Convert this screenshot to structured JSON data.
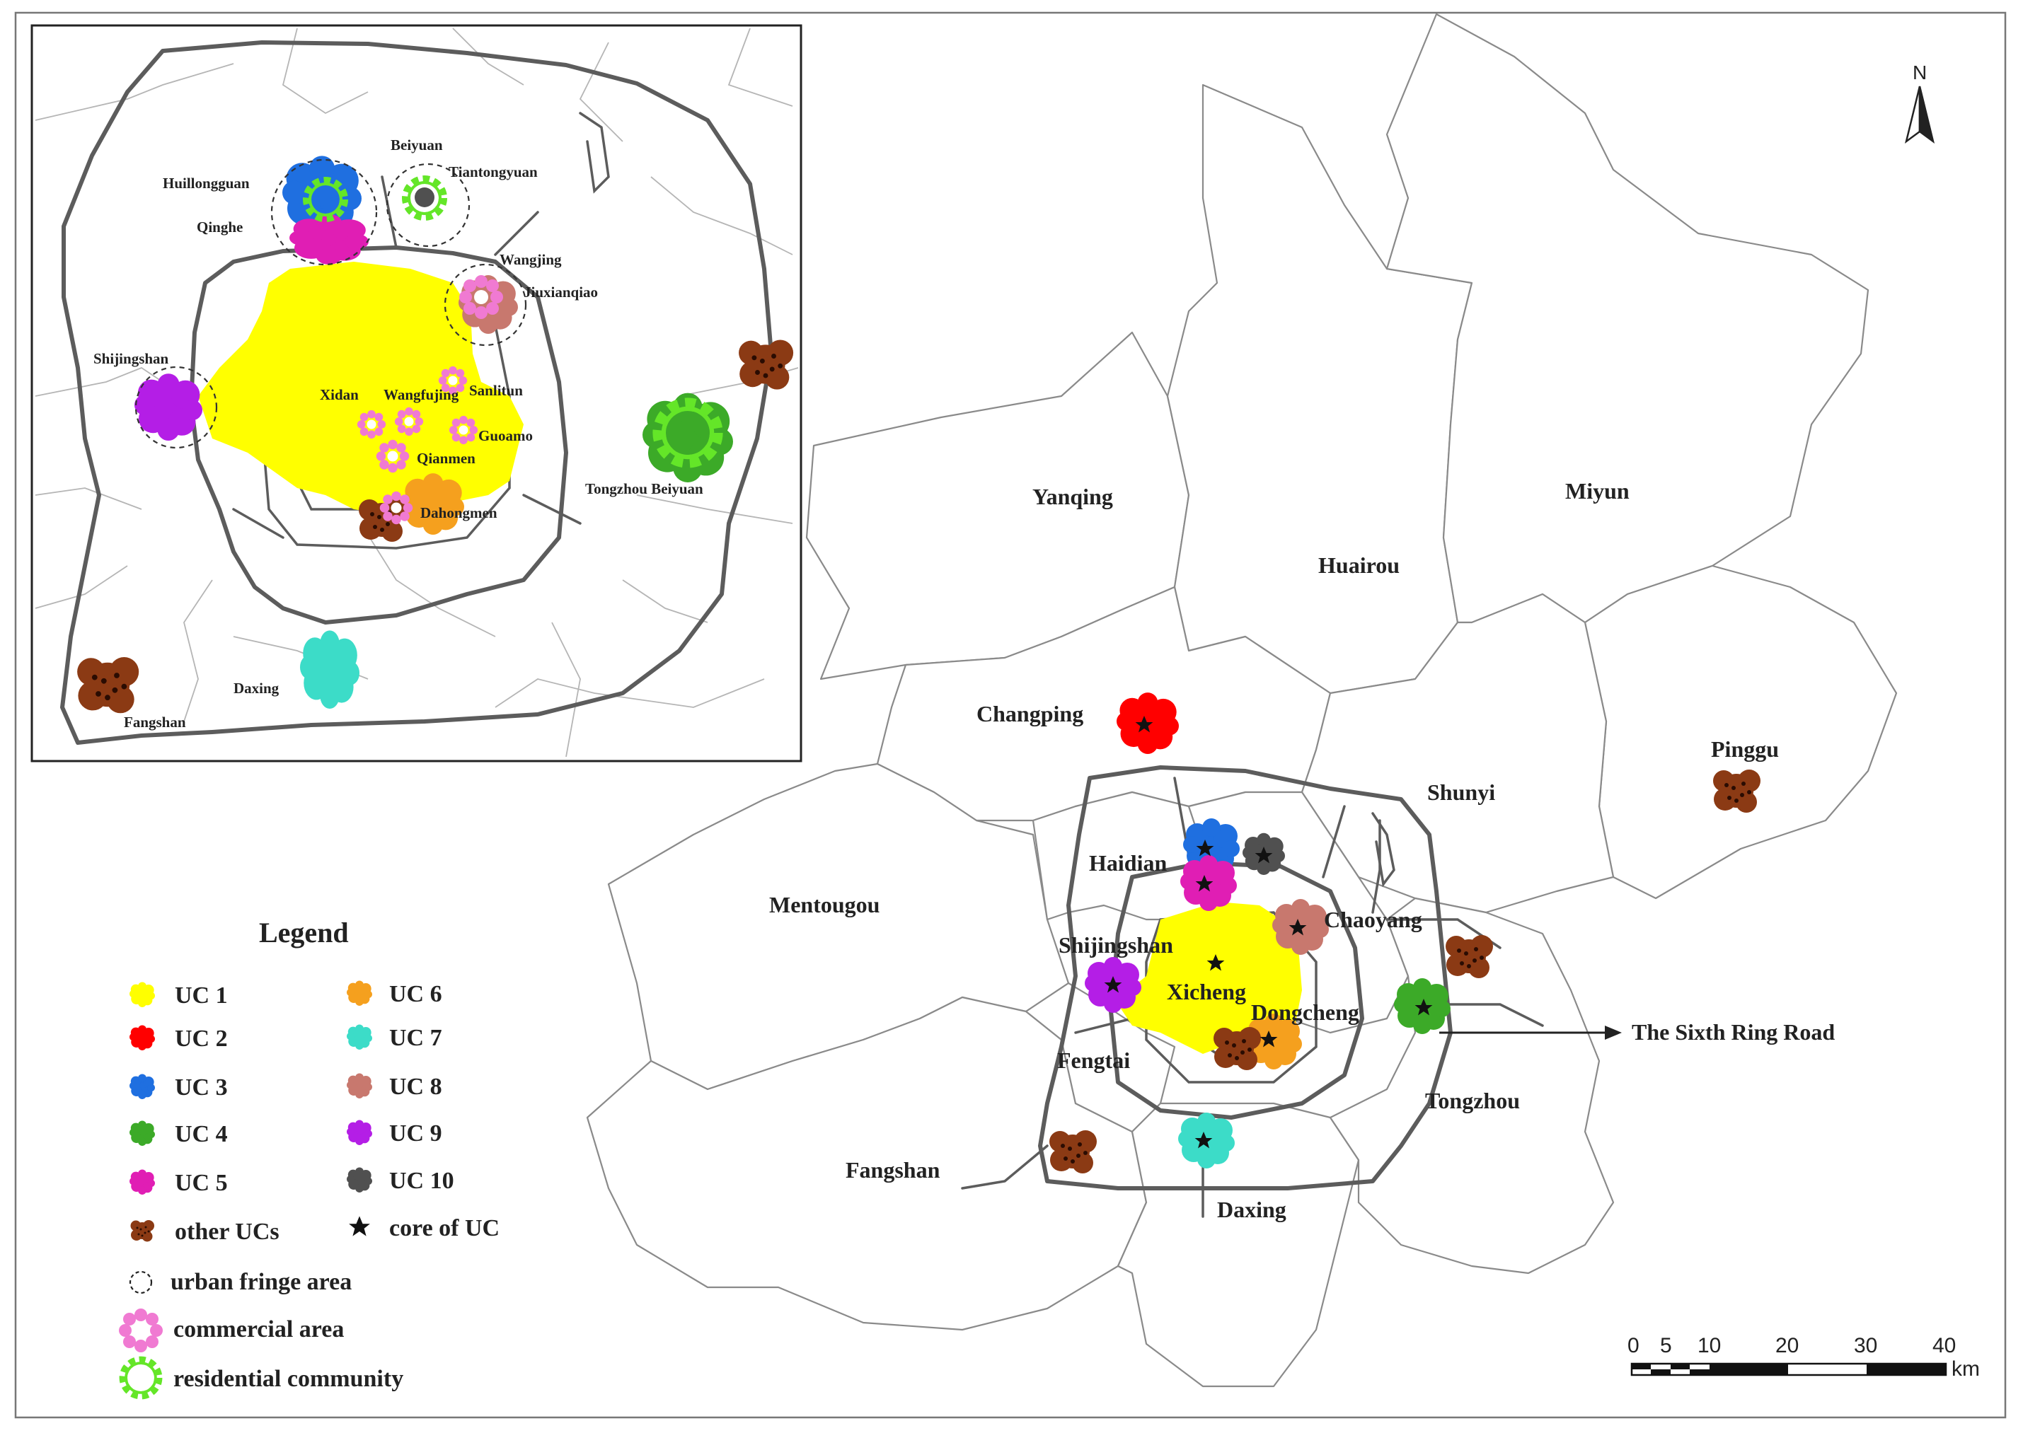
{
  "districts": [
    {
      "id": "yanqing",
      "name": "Yanqing"
    },
    {
      "id": "huairou",
      "name": "Huairou"
    },
    {
      "id": "miyun",
      "name": "Miyun"
    },
    {
      "id": "changping",
      "name": "Changping"
    },
    {
      "id": "pinggu",
      "name": "Pinggu"
    },
    {
      "id": "shunyi",
      "name": "Shunyi"
    },
    {
      "id": "mentougou",
      "name": "Mentougou"
    },
    {
      "id": "haidian",
      "name": "Haidian"
    },
    {
      "id": "chaoyang",
      "name": "Chaoyang"
    },
    {
      "id": "shijingshan",
      "name": "Shijingshan"
    },
    {
      "id": "xicheng",
      "name": "Xicheng"
    },
    {
      "id": "dongcheng",
      "name": "Dongcheng"
    },
    {
      "id": "fengtai",
      "name": "Fengtai"
    },
    {
      "id": "tongzhou",
      "name": "Tongzhou"
    },
    {
      "id": "fangshan",
      "name": "Fangshan"
    },
    {
      "id": "daxing",
      "name": "Daxing"
    }
  ],
  "ring_road_label": "The Sixth Ring Road",
  "inset_labels": [
    "Huillongguan",
    "Beiyuan",
    "Tiantongyuan",
    "Qinghe",
    "Wangjing",
    "Jiuxianqiao",
    "Shijingshan",
    "Xidan",
    "Wangfujing",
    "Sanlitun",
    "Guoamo",
    "Qianmen",
    "Tongzhou Beiyuan",
    "Dahongmen",
    "Daxing",
    "Fangshan"
  ],
  "north_arrow": "N",
  "scale_bar": {
    "ticks": [
      "0",
      "5",
      "10",
      "20",
      "30",
      "40"
    ],
    "unit": "km"
  },
  "legend": {
    "title": "Legend",
    "clusters": [
      {
        "label": "UC 1",
        "color": "#ffff00"
      },
      {
        "label": "UC 2",
        "color": "#ff0000"
      },
      {
        "label": "UC 3",
        "color": "#1f6fe0"
      },
      {
        "label": "UC 4",
        "color": "#3caa28"
      },
      {
        "label": "UC 5",
        "color": "#e01eb4"
      },
      {
        "label": "UC 6",
        "color": "#f5a01e"
      },
      {
        "label": "UC 7",
        "color": "#3cdcc8"
      },
      {
        "label": "UC 8",
        "color": "#c8786e"
      },
      {
        "label": "UC 9",
        "color": "#b41ee6"
      },
      {
        "label": "UC 10",
        "color": "#505050"
      }
    ],
    "other_ucs": {
      "label": "other UCs",
      "color": "#8b3a14"
    },
    "core": {
      "label": "core of UC",
      "icon": "star-icon"
    },
    "fringe": {
      "label": "urban fringe area"
    },
    "commercial": {
      "label": "commercial area",
      "color": "#f07ad2"
    },
    "residential": {
      "label": "residential community",
      "color": "#64e628"
    }
  }
}
